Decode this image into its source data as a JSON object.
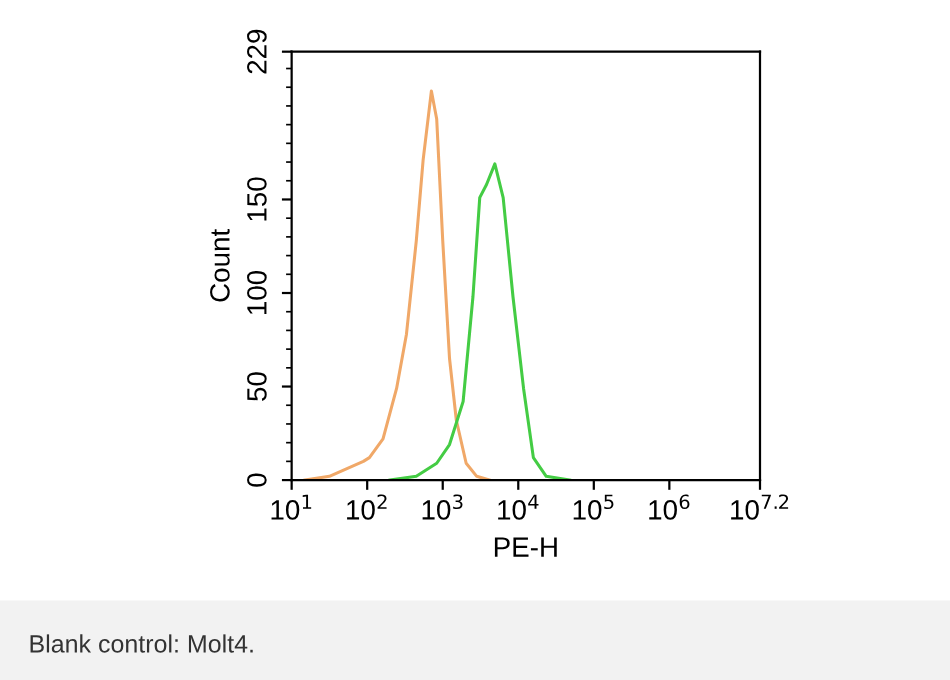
{
  "chart_data": {
    "type": "line",
    "xlabel": "PE-H",
    "ylabel": "Count",
    "series": [
      {
        "color": "#f0a868",
        "x": [
          15,
          31.6,
          89,
          107,
          162,
          245,
          331,
          447,
          550,
          708,
          832,
          1000,
          1230,
          1514,
          2042,
          2818,
          4169
        ],
        "values": [
          0,
          2,
          10,
          12,
          22,
          49,
          78,
          128,
          171,
          208,
          193,
          128,
          65,
          32,
          9,
          2,
          0
        ]
      },
      {
        "color": "#44cc44",
        "x": [
          200,
          447,
          832,
          1230,
          1862,
          2512,
          3090,
          3802,
          4898,
          6310,
          8511,
          11749,
          15849,
          23442,
          47863
        ],
        "values": [
          0,
          2,
          9,
          19,
          42,
          98,
          151,
          158,
          169,
          151,
          98,
          49,
          12,
          2,
          0
        ]
      }
    ],
    "log": "x",
    "grid": false,
    "legend": false,
    "xlim": [
      10,
      15848932
    ],
    "ylim": [
      0,
      229
    ],
    "xticks": [
      {
        "value": 10,
        "label": "10$^{1}$"
      },
      {
        "value": 100,
        "label": "10$^{2}$"
      },
      {
        "value": 1000,
        "label": "10$^{3}$"
      },
      {
        "value": 10000,
        "label": "10$^{4}$"
      },
      {
        "value": 100000,
        "label": "10$^{5}$"
      },
      {
        "value": 1000000,
        "label": "10$^{6}$"
      },
      {
        "value": 15848932,
        "label": "10$^{7.2}$"
      }
    ],
    "yticks": [
      0,
      50,
      100,
      150,
      229
    ],
    "annotations": [
      "Blank control: Molt4."
    ]
  }
}
